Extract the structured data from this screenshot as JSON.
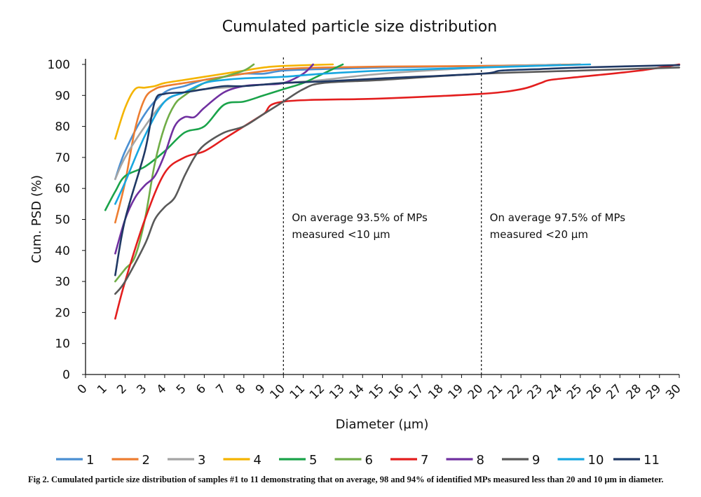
{
  "chart_data": {
    "type": "line",
    "title": "Cumulated particle size distribution",
    "xlabel": "Diameter (µm)",
    "ylabel": "Cum. PSD (%)",
    "xlim": [
      0,
      30
    ],
    "ylim": [
      0,
      100
    ],
    "x_ticks": [
      0,
      1,
      2,
      3,
      4,
      5,
      6,
      7,
      8,
      9,
      10,
      11,
      12,
      13,
      14,
      15,
      16,
      17,
      18,
      19,
      20,
      21,
      22,
      23,
      24,
      25,
      26,
      27,
      28,
      29,
      30
    ],
    "y_ticks": [
      0,
      10,
      20,
      30,
      40,
      50,
      60,
      70,
      80,
      90,
      100
    ],
    "grid": false,
    "legend_position": "bottom",
    "reference_lines": [
      {
        "x": 10,
        "label": [
          "On average 93.5% of  MPs",
          "measured <10 µm"
        ]
      },
      {
        "x": 20,
        "label": [
          "On average 97.5% of  MPs",
          "measured <20 µm"
        ]
      }
    ],
    "series": [
      {
        "name": "1",
        "color": "#4a8fd2",
        "x": [
          1.5,
          2,
          3,
          4,
          5,
          6,
          7,
          8,
          9,
          10,
          12,
          15,
          20,
          25
        ],
        "y": [
          63,
          72,
          84,
          91,
          93,
          95,
          96,
          97,
          97,
          98,
          98.5,
          99,
          99.5,
          100
        ]
      },
      {
        "name": "2",
        "color": "#ed7d31",
        "x": [
          1.5,
          2,
          2.5,
          3,
          3.5,
          4,
          5,
          6,
          8,
          10,
          12,
          15,
          20,
          25
        ],
        "y": [
          49,
          62,
          79,
          89,
          92,
          93,
          94,
          95,
          97,
          98.5,
          99,
          99.3,
          99.5,
          100
        ]
      },
      {
        "name": "3",
        "color": "#a5a5a5",
        "x": [
          1.5,
          2,
          3,
          4,
          5,
          6,
          7,
          8,
          10,
          12,
          15,
          20,
          24
        ],
        "y": [
          63,
          70,
          80,
          88,
          91,
          92,
          92.5,
          93,
          94,
          95,
          97,
          99,
          100
        ]
      },
      {
        "name": "4",
        "color": "#f4b400",
        "x": [
          1.5,
          2,
          2.5,
          3,
          3.5,
          4,
          5,
          6,
          7,
          8,
          9,
          10,
          12.5
        ],
        "y": [
          76,
          86,
          92,
          92.5,
          93,
          94,
          95,
          96,
          97,
          98,
          99,
          99.5,
          100
        ]
      },
      {
        "name": "5",
        "color": "#1aa34a",
        "x": [
          1,
          1.5,
          2,
          3,
          4,
          5,
          6,
          7,
          8,
          9,
          10,
          11,
          12,
          13
        ],
        "y": [
          53,
          59,
          64,
          67,
          72,
          78,
          80,
          87,
          88,
          90,
          92,
          94,
          97,
          100
        ]
      },
      {
        "name": "6",
        "color": "#70ad47",
        "x": [
          1.5,
          2,
          2.5,
          3,
          3.5,
          4,
          4.5,
          5,
          6,
          7,
          8,
          8.5
        ],
        "y": [
          30,
          34,
          38,
          50,
          68,
          80,
          87,
          90,
          94,
          96,
          98,
          100
        ]
      },
      {
        "name": "7",
        "color": "#e31e1e",
        "x": [
          1.5,
          2,
          3,
          4,
          5,
          6,
          7,
          8,
          9,
          10,
          15,
          20,
          22,
          23,
          23.5,
          25,
          28,
          30
        ],
        "y": [
          18,
          30,
          50,
          65,
          70,
          72,
          76,
          80,
          84,
          88,
          89,
          90.5,
          92,
          94,
          95,
          96,
          98,
          100
        ]
      },
      {
        "name": "8",
        "color": "#7030a0",
        "x": [
          1.5,
          2,
          2.5,
          3,
          3.5,
          4,
          4.5,
          5,
          5.5,
          6,
          7,
          8,
          9,
          10,
          11,
          11.5
        ],
        "y": [
          39,
          50,
          57,
          61,
          64,
          71,
          80,
          83,
          83,
          86,
          91,
          93,
          93.5,
          94,
          97,
          100
        ]
      },
      {
        "name": "9",
        "color": "#595959",
        "x": [
          1.5,
          2,
          3,
          3.5,
          4,
          4.5,
          5,
          5.5,
          6,
          7,
          8,
          9,
          10,
          11,
          12,
          15,
          20,
          25,
          30
        ],
        "y": [
          26,
          30,
          42,
          50,
          54,
          57,
          64,
          70,
          74,
          78,
          80,
          84,
          88,
          92,
          94,
          95,
          97,
          98,
          99
        ]
      },
      {
        "name": "10",
        "color": "#17a7e0",
        "x": [
          1.5,
          2,
          3,
          4,
          5,
          6,
          7,
          8,
          10,
          12,
          15,
          20,
          25.5
        ],
        "y": [
          55,
          62,
          77,
          88,
          91,
          94,
          95,
          95.5,
          96,
          97,
          98,
          99,
          100
        ]
      },
      {
        "name": "11",
        "color": "#1f3864",
        "x": [
          1.5,
          2,
          3,
          3.5,
          4,
          5,
          6,
          7,
          8,
          10,
          12,
          15,
          20,
          21,
          23,
          25,
          30
        ],
        "y": [
          32,
          50,
          72,
          88,
          90.5,
          91,
          92,
          93,
          93,
          94,
          94.5,
          95.5,
          97,
          98,
          98.5,
          99,
          99.8
        ]
      }
    ]
  },
  "caption": "Fig 2.  Cumulated particle size distribution of samples #1 to 11 demonstrating that on average, 98 and 94% of identified MPs measured less than 20 and 10 µm in diameter."
}
